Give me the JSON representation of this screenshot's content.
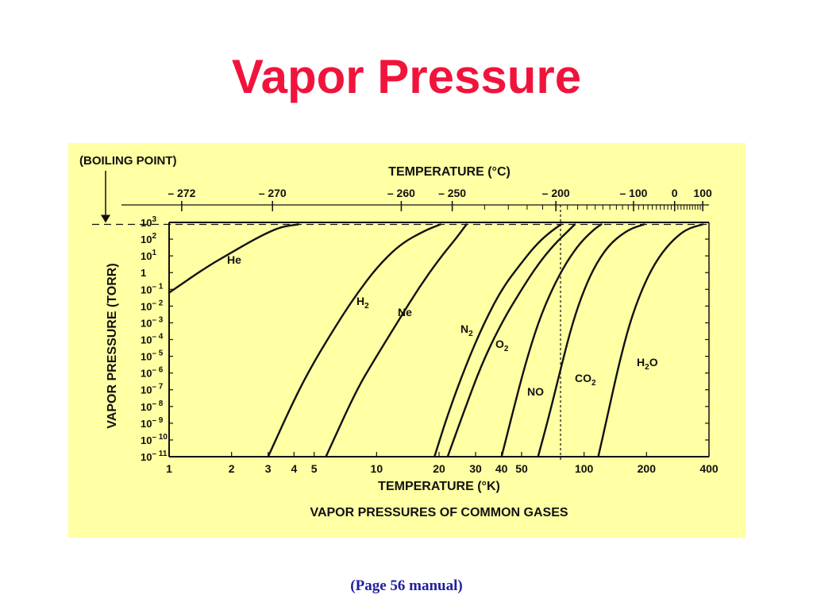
{
  "slide": {
    "title": "Vapor Pressure",
    "footnote": "(Page 56 manual)",
    "title_color": "#f0143c",
    "panel_color": "#ffffa3",
    "footnote_color": "#2020a0"
  },
  "chart_data": {
    "type": "line",
    "title": "VAPOR PRESSURES OF COMMON GASES",
    "xlabel": "TEMPERATURE (°K)",
    "x2label": "TEMPERATURE (°C)",
    "ylabel": "VAPOR PRESSURE (TORR)",
    "annotation": "(BOILING POINT)",
    "xscale": "log",
    "xlim": [
      1,
      400
    ],
    "ylim_exponent": [
      -11,
      3
    ],
    "x_ticks": [
      "1",
      "2",
      "3",
      "4",
      "5",
      "10",
      "20",
      "30",
      "40",
      "50",
      "100",
      "200",
      "400"
    ],
    "x_tick_values": [
      1,
      2,
      3,
      4,
      5,
      10,
      20,
      30,
      40,
      50,
      100,
      200,
      400
    ],
    "x2_ticks": [
      "– 272",
      "– 270",
      "– 260",
      "– 250",
      "– 200",
      "– 100",
      "0",
      "100"
    ],
    "x2_tick_celsius": [
      -272,
      -270,
      -260,
      -250,
      -200,
      -100,
      0,
      100
    ],
    "y_tick_exponents": [
      3,
      2,
      1,
      0,
      -1,
      -2,
      -3,
      -4,
      -5,
      -6,
      -7,
      -8,
      -9,
      -10,
      -11
    ],
    "y_tick_base": "10",
    "y_tick_one": "1",
    "boiling_point_torr": 760,
    "reference_temperature_K": 77,
    "series": [
      {
        "name": "He",
        "label_sub": "",
        "points": [
          [
            1.0,
            -1.2
          ],
          [
            1.5,
            0.3
          ],
          [
            2.0,
            1.2
          ],
          [
            2.5,
            1.9
          ],
          [
            3.0,
            2.4
          ],
          [
            3.5,
            2.75
          ],
          [
            4.2,
            2.88
          ]
        ]
      },
      {
        "name": "H",
        "label_sub": "2",
        "points": [
          [
            3.0,
            -11
          ],
          [
            4.0,
            -7.6
          ],
          [
            5.0,
            -5.3
          ],
          [
            6.5,
            -3.0
          ],
          [
            8.0,
            -1.3
          ],
          [
            10,
            0.3
          ],
          [
            13,
            1.7
          ],
          [
            17,
            2.5
          ],
          [
            20.3,
            2.88
          ]
        ]
      },
      {
        "name": "Ne",
        "label_sub": "",
        "points": [
          [
            5.7,
            -11
          ],
          [
            8.0,
            -7.0
          ],
          [
            10,
            -5.0
          ],
          [
            13,
            -2.7
          ],
          [
            16,
            -0.9
          ],
          [
            20,
            0.8
          ],
          [
            24,
            2.0
          ],
          [
            27.1,
            2.88
          ]
        ]
      },
      {
        "name": "N",
        "label_sub": "2",
        "points": [
          [
            19,
            -11
          ],
          [
            22,
            -8.5
          ],
          [
            27,
            -5.5
          ],
          [
            33,
            -3.0
          ],
          [
            40,
            -1.0
          ],
          [
            50,
            0.6
          ],
          [
            60,
            1.8
          ],
          [
            70,
            2.5
          ],
          [
            77.4,
            2.88
          ]
        ]
      },
      {
        "name": "O",
        "label_sub": "2",
        "points": [
          [
            22,
            -11
          ],
          [
            26,
            -8.5
          ],
          [
            32,
            -5.5
          ],
          [
            40,
            -3.0
          ],
          [
            50,
            -1.0
          ],
          [
            60,
            0.5
          ],
          [
            72,
            1.7
          ],
          [
            84,
            2.5
          ],
          [
            90.2,
            2.88
          ]
        ]
      },
      {
        "name": "NO",
        "label_sub": "",
        "points": [
          [
            40,
            -11
          ],
          [
            45,
            -8.5
          ],
          [
            52,
            -5.5
          ],
          [
            60,
            -3.0
          ],
          [
            70,
            -1.0
          ],
          [
            82,
            0.6
          ],
          [
            96,
            1.8
          ],
          [
            112,
            2.6
          ],
          [
            121,
            2.88
          ]
        ]
      },
      {
        "name": "CO",
        "label_sub": "2",
        "points": [
          [
            60,
            -11
          ],
          [
            68,
            -8.5
          ],
          [
            78,
            -5.5
          ],
          [
            88,
            -3.0
          ],
          [
            100,
            -1.0
          ],
          [
            115,
            0.6
          ],
          [
            135,
            1.8
          ],
          [
            165,
            2.6
          ],
          [
            194.7,
            2.88
          ]
        ]
      },
      {
        "name": "H",
        "label_sub": "2",
        "label_tail": "O",
        "points": [
          [
            117,
            -11
          ],
          [
            130,
            -8.5
          ],
          [
            147,
            -5.5
          ],
          [
            166,
            -3.0
          ],
          [
            190,
            -1.0
          ],
          [
            220,
            0.6
          ],
          [
            260,
            1.8
          ],
          [
            310,
            2.6
          ],
          [
            373,
            2.88
          ]
        ]
      }
    ]
  }
}
